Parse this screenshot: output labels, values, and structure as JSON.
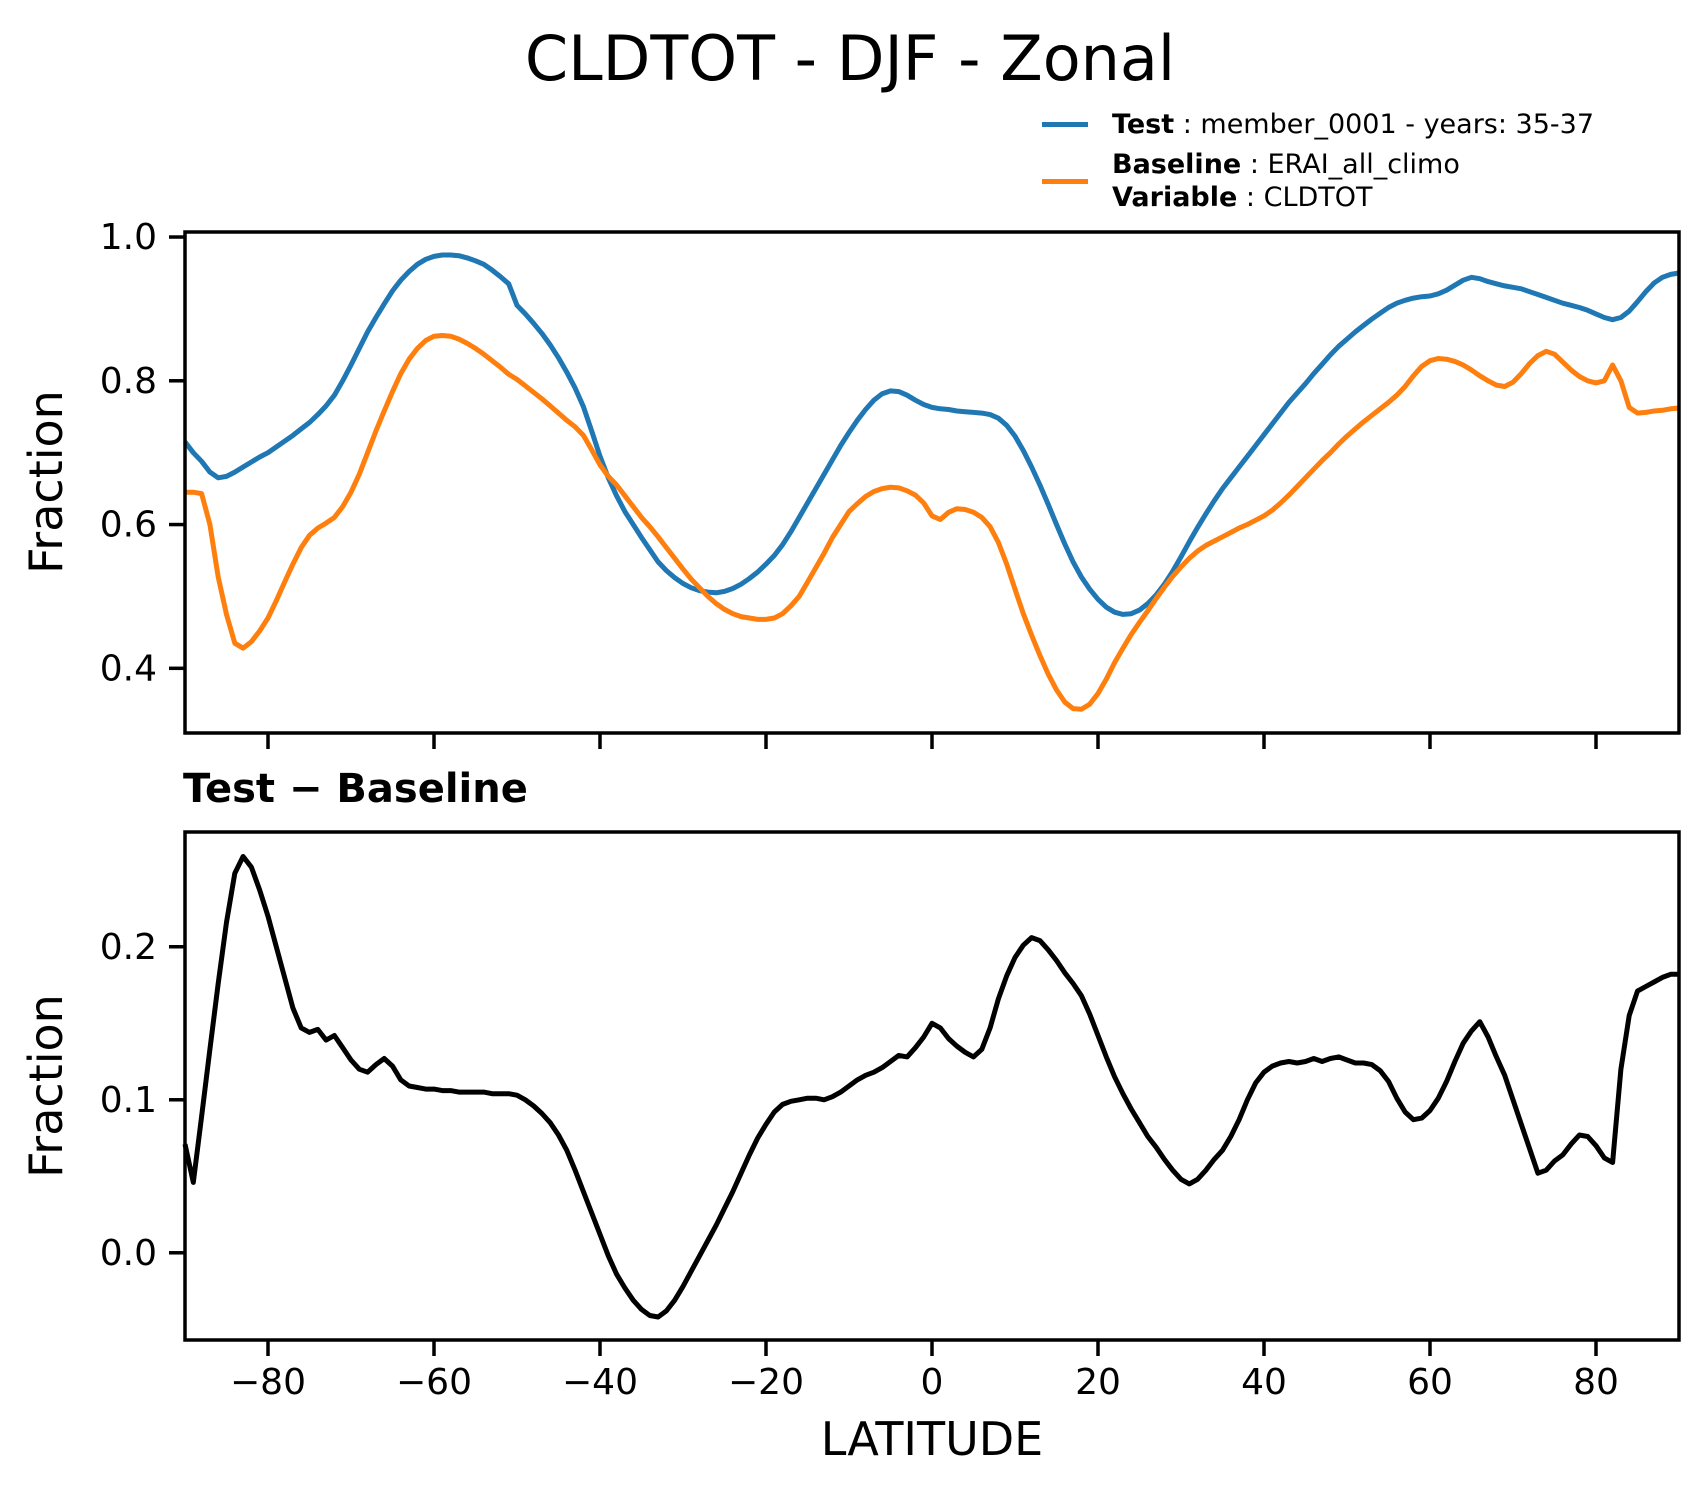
{
  "figure": {
    "title": "CLDTOT - DJF - Zonal"
  },
  "legend": {
    "test_label": "Test",
    "test_desc": " : member_0001 - years: 35-37",
    "baseline_label": "Baseline",
    "baseline_desc": " : ERAI_all_climo",
    "variable_label": "Variable",
    "variable_desc": " : CLDTOT"
  },
  "colors": {
    "test": "#1f77b4",
    "baseline": "#ff7f0e",
    "diff": "#000000",
    "axes": "#000000"
  },
  "chart_data": [
    {
      "type": "line",
      "title": "CLDTOT - DJF - Zonal",
      "xlabel": "",
      "ylabel": "Fraction",
      "grid": false,
      "legend_position": "above-top-right",
      "xlim": [
        -90,
        90
      ],
      "ylim": [
        0.31,
        1.007
      ],
      "xtick_values": [
        -80,
        -60,
        -40,
        -20,
        0,
        20,
        40,
        60,
        80
      ],
      "xtick_labels": [],
      "ytick_values": [
        1.0,
        0.8,
        0.6,
        0.4
      ],
      "ytick_labels": [
        "1.0",
        "0.8",
        "0.6",
        "0.4"
      ],
      "x": [
        -90,
        -89,
        -88,
        -87,
        -86,
        -85,
        -84,
        -83,
        -82,
        -81,
        -80,
        -79,
        -78,
        -77,
        -76,
        -75,
        -74,
        -73,
        -72,
        -71,
        -70,
        -69,
        -68,
        -67,
        -66,
        -65,
        -64,
        -63,
        -62,
        -61,
        -60,
        -59,
        -58,
        -57,
        -56,
        -55,
        -54,
        -53,
        -52,
        -51,
        -50,
        -49,
        -48,
        -47,
        -46,
        -45,
        -44,
        -43,
        -42,
        -41,
        -40,
        -39,
        -38,
        -37,
        -36,
        -35,
        -34,
        -33,
        -32,
        -31,
        -30,
        -29,
        -28,
        -27,
        -26,
        -25,
        -24,
        -23,
        -22,
        -21,
        -20,
        -19,
        -18,
        -17,
        -16,
        -15,
        -14,
        -13,
        -12,
        -11,
        -10,
        -9,
        -8,
        -7,
        -6,
        -5,
        -4,
        -3,
        -2,
        -1,
        0,
        1,
        2,
        3,
        4,
        5,
        6,
        7,
        8,
        9,
        10,
        11,
        12,
        13,
        14,
        15,
        16,
        17,
        18,
        19,
        20,
        21,
        22,
        23,
        24,
        25,
        26,
        27,
        28,
        29,
        30,
        31,
        32,
        33,
        34,
        35,
        36,
        37,
        38,
        39,
        40,
        41,
        42,
        43,
        44,
        45,
        46,
        47,
        48,
        49,
        50,
        51,
        52,
        53,
        54,
        55,
        56,
        57,
        58,
        59,
        60,
        61,
        62,
        63,
        64,
        65,
        66,
        67,
        68,
        69,
        70,
        71,
        72,
        73,
        74,
        75,
        76,
        77,
        78,
        79,
        80,
        81,
        82,
        83,
        84,
        85,
        86,
        87,
        88,
        89,
        90
      ],
      "series": [
        {
          "name": "Test",
          "color": "#1f77b4",
          "y": [
            0.715,
            0.7,
            0.688,
            0.673,
            0.665,
            0.667,
            0.673,
            0.68,
            0.687,
            0.694,
            0.7,
            0.708,
            0.716,
            0.724,
            0.733,
            0.742,
            0.753,
            0.765,
            0.78,
            0.8,
            0.822,
            0.845,
            0.868,
            0.888,
            0.907,
            0.925,
            0.94,
            0.952,
            0.962,
            0.969,
            0.973,
            0.975,
            0.975,
            0.974,
            0.971,
            0.967,
            0.962,
            0.954,
            0.945,
            0.935,
            0.905,
            0.893,
            0.88,
            0.866,
            0.85,
            0.832,
            0.812,
            0.79,
            0.764,
            0.73,
            0.695,
            0.665,
            0.64,
            0.618,
            0.6,
            0.582,
            0.565,
            0.548,
            0.536,
            0.526,
            0.518,
            0.512,
            0.508,
            0.506,
            0.505,
            0.507,
            0.511,
            0.517,
            0.525,
            0.534,
            0.545,
            0.557,
            0.572,
            0.59,
            0.61,
            0.63,
            0.65,
            0.67,
            0.69,
            0.71,
            0.728,
            0.745,
            0.76,
            0.773,
            0.782,
            0.786,
            0.785,
            0.78,
            0.773,
            0.767,
            0.763,
            0.761,
            0.76,
            0.758,
            0.757,
            0.756,
            0.755,
            0.753,
            0.748,
            0.738,
            0.723,
            0.703,
            0.68,
            0.655,
            0.628,
            0.6,
            0.573,
            0.548,
            0.527,
            0.51,
            0.496,
            0.485,
            0.478,
            0.475,
            0.476,
            0.481,
            0.49,
            0.502,
            0.517,
            0.535,
            0.555,
            0.576,
            0.596,
            0.615,
            0.633,
            0.65,
            0.665,
            0.68,
            0.695,
            0.71,
            0.725,
            0.74,
            0.755,
            0.77,
            0.783,
            0.796,
            0.81,
            0.823,
            0.836,
            0.848,
            0.858,
            0.868,
            0.877,
            0.886,
            0.894,
            0.902,
            0.908,
            0.912,
            0.915,
            0.917,
            0.918,
            0.921,
            0.926,
            0.933,
            0.94,
            0.944,
            0.942,
            0.938,
            0.935,
            0.932,
            0.93,
            0.928,
            0.924,
            0.92,
            0.916,
            0.912,
            0.908,
            0.905,
            0.902,
            0.898,
            0.893,
            0.888,
            0.885,
            0.888,
            0.897,
            0.91,
            0.924,
            0.936,
            0.944,
            0.948,
            0.95
          ]
        },
        {
          "name": "Baseline",
          "color": "#ff7f0e",
          "y": [
            0.645,
            0.645,
            0.643,
            0.6,
            0.527,
            0.475,
            0.435,
            0.428,
            0.437,
            0.452,
            0.47,
            0.494,
            0.52,
            0.545,
            0.568,
            0.585,
            0.595,
            0.602,
            0.61,
            0.625,
            0.645,
            0.67,
            0.7,
            0.73,
            0.758,
            0.785,
            0.81,
            0.83,
            0.845,
            0.856,
            0.862,
            0.863,
            0.862,
            0.858,
            0.852,
            0.845,
            0.837,
            0.828,
            0.819,
            0.809,
            0.802,
            0.793,
            0.784,
            0.775,
            0.765,
            0.755,
            0.745,
            0.736,
            0.724,
            0.704,
            0.683,
            0.667,
            0.655,
            0.64,
            0.625,
            0.61,
            0.597,
            0.583,
            0.568,
            0.553,
            0.538,
            0.524,
            0.512,
            0.5,
            0.49,
            0.482,
            0.476,
            0.472,
            0.47,
            0.468,
            0.468,
            0.47,
            0.476,
            0.487,
            0.5,
            0.52,
            0.54,
            0.56,
            0.582,
            0.6,
            0.618,
            0.629,
            0.639,
            0.646,
            0.65,
            0.652,
            0.651,
            0.647,
            0.641,
            0.63,
            0.612,
            0.607,
            0.617,
            0.622,
            0.621,
            0.617,
            0.61,
            0.597,
            0.575,
            0.545,
            0.51,
            0.476,
            0.446,
            0.418,
            0.392,
            0.37,
            0.353,
            0.344,
            0.343,
            0.35,
            0.365,
            0.385,
            0.408,
            0.428,
            0.447,
            0.464,
            0.48,
            0.497,
            0.513,
            0.528,
            0.541,
            0.553,
            0.563,
            0.571,
            0.577,
            0.583,
            0.589,
            0.595,
            0.6,
            0.606,
            0.612,
            0.62,
            0.63,
            0.641,
            0.653,
            0.665,
            0.677,
            0.689,
            0.7,
            0.712,
            0.723,
            0.733,
            0.743,
            0.752,
            0.761,
            0.77,
            0.78,
            0.792,
            0.807,
            0.82,
            0.828,
            0.831,
            0.83,
            0.827,
            0.822,
            0.815,
            0.807,
            0.8,
            0.794,
            0.792,
            0.798,
            0.81,
            0.824,
            0.835,
            0.841,
            0.837,
            0.826,
            0.815,
            0.806,
            0.8,
            0.797,
            0.8,
            0.822,
            0.8,
            0.763,
            0.755,
            0.756,
            0.758,
            0.759,
            0.761,
            0.762
          ]
        }
      ]
    },
    {
      "type": "line",
      "title": "Test − Baseline",
      "xlabel": "LATITUDE",
      "ylabel": "Fraction",
      "grid": false,
      "xlim": [
        -90,
        90
      ],
      "ylim": [
        -0.057,
        0.275
      ],
      "xtick_values": [
        -80,
        -60,
        -40,
        -20,
        0,
        20,
        40,
        60,
        80
      ],
      "xtick_labels": [
        "−80",
        "−60",
        "−40",
        "−20",
        "0",
        "20",
        "40",
        "60",
        "80"
      ],
      "ytick_values": [
        0.2,
        0.1,
        0.0
      ],
      "ytick_labels": [
        "0.2",
        "0.1",
        "0.0"
      ],
      "x": [
        -90,
        -89,
        -88,
        -87,
        -86,
        -85,
        -84,
        -83,
        -82,
        -81,
        -80,
        -79,
        -78,
        -77,
        -76,
        -75,
        -74,
        -73,
        -72,
        -71,
        -70,
        -69,
        -68,
        -67,
        -66,
        -65,
        -64,
        -63,
        -62,
        -61,
        -60,
        -59,
        -58,
        -57,
        -56,
        -55,
        -54,
        -53,
        -52,
        -51,
        -50,
        -49,
        -48,
        -47,
        -46,
        -45,
        -44,
        -43,
        -42,
        -41,
        -40,
        -39,
        -38,
        -37,
        -36,
        -35,
        -34,
        -33,
        -32,
        -31,
        -30,
        -29,
        -28,
        -27,
        -26,
        -25,
        -24,
        -23,
        -22,
        -21,
        -20,
        -19,
        -18,
        -17,
        -16,
        -15,
        -14,
        -13,
        -12,
        -11,
        -10,
        -9,
        -8,
        -7,
        -6,
        -5,
        -4,
        -3,
        -2,
        -1,
        0,
        1,
        2,
        3,
        4,
        5,
        6,
        7,
        8,
        9,
        10,
        11,
        12,
        13,
        14,
        15,
        16,
        17,
        18,
        19,
        20,
        21,
        22,
        23,
        24,
        25,
        26,
        27,
        28,
        29,
        30,
        31,
        32,
        33,
        34,
        35,
        36,
        37,
        38,
        39,
        40,
        41,
        42,
        43,
        44,
        45,
        46,
        47,
        48,
        49,
        50,
        51,
        52,
        53,
        54,
        55,
        56,
        57,
        58,
        59,
        60,
        61,
        62,
        63,
        64,
        65,
        66,
        67,
        68,
        69,
        70,
        71,
        72,
        73,
        74,
        75,
        76,
        77,
        78,
        79,
        80,
        81,
        82,
        83,
        84,
        85,
        86,
        87,
        88,
        89,
        90
      ],
      "series": [
        {
          "name": "Test - Baseline",
          "color": "#000000",
          "y": [
            0.071,
            0.046,
            0.089,
            0.133,
            0.176,
            0.216,
            0.248,
            0.259,
            0.252,
            0.237,
            0.22,
            0.2,
            0.18,
            0.16,
            0.147,
            0.144,
            0.146,
            0.139,
            0.142,
            0.134,
            0.126,
            0.12,
            0.118,
            0.123,
            0.127,
            0.122,
            0.113,
            0.109,
            0.108,
            0.107,
            0.107,
            0.106,
            0.106,
            0.105,
            0.105,
            0.105,
            0.105,
            0.104,
            0.104,
            0.104,
            0.103,
            0.1,
            0.096,
            0.091,
            0.085,
            0.077,
            0.067,
            0.054,
            0.04,
            0.026,
            0.012,
            -0.002,
            -0.014,
            -0.023,
            -0.031,
            -0.037,
            -0.041,
            -0.042,
            -0.038,
            -0.031,
            -0.022,
            -0.012,
            -0.002,
            0.008,
            0.018,
            0.029,
            0.04,
            0.052,
            0.064,
            0.075,
            0.084,
            0.092,
            0.097,
            0.099,
            0.1,
            0.101,
            0.101,
            0.1,
            0.102,
            0.105,
            0.109,
            0.113,
            0.116,
            0.118,
            0.121,
            0.125,
            0.129,
            0.128,
            0.134,
            0.141,
            0.15,
            0.147,
            0.14,
            0.135,
            0.131,
            0.128,
            0.133,
            0.147,
            0.166,
            0.181,
            0.193,
            0.201,
            0.206,
            0.204,
            0.198,
            0.191,
            0.183,
            0.176,
            0.168,
            0.156,
            0.142,
            0.128,
            0.115,
            0.104,
            0.094,
            0.085,
            0.076,
            0.069,
            0.061,
            0.054,
            0.048,
            0.045,
            0.048,
            0.054,
            0.061,
            0.067,
            0.076,
            0.087,
            0.1,
            0.111,
            0.118,
            0.122,
            0.124,
            0.125,
            0.124,
            0.125,
            0.127,
            0.125,
            0.127,
            0.128,
            0.126,
            0.124,
            0.124,
            0.123,
            0.119,
            0.112,
            0.101,
            0.092,
            0.087,
            0.088,
            0.093,
            0.101,
            0.112,
            0.125,
            0.137,
            0.145,
            0.151,
            0.141,
            0.128,
            0.116,
            0.1,
            0.084,
            0.068,
            0.052,
            0.054,
            0.06,
            0.064,
            0.071,
            0.077,
            0.076,
            0.07,
            0.062,
            0.059,
            0.12,
            0.155,
            0.171,
            0.174,
            0.177,
            0.18,
            0.182,
            0.182
          ]
        }
      ]
    }
  ]
}
